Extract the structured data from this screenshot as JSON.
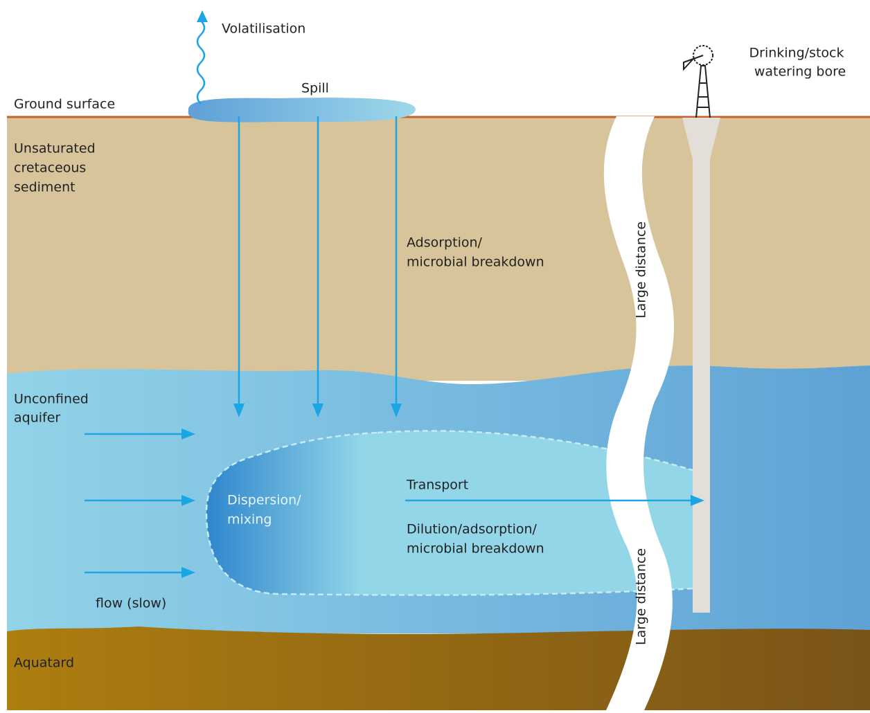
{
  "labels": {
    "volatilisation": [
      "Volatilisation"
    ],
    "spill": [
      "Spill"
    ],
    "ground_surface": [
      "Ground surface"
    ],
    "unsaturated_sediment": [
      "Unsaturated",
      "cretaceous",
      "sediment"
    ],
    "adsorption": [
      "Adsorption/",
      "microbial breakdown"
    ],
    "unconfined_aquifer": [
      "Unconfined",
      "aquifer"
    ],
    "dispersion": [
      "Dispersion/",
      "mixing"
    ],
    "transport": [
      "Transport"
    ],
    "dilution": [
      "Dilution/adsorption/",
      "microbial breakdown"
    ],
    "flow": [
      "flow (slow)"
    ],
    "aquatard": [
      "Aquatard"
    ],
    "bore": [
      "Drinking/stock",
      "watering bore"
    ],
    "large_distance_top": [
      "Large distance"
    ],
    "large_distance_bottom": [
      "Large distance"
    ]
  }
}
